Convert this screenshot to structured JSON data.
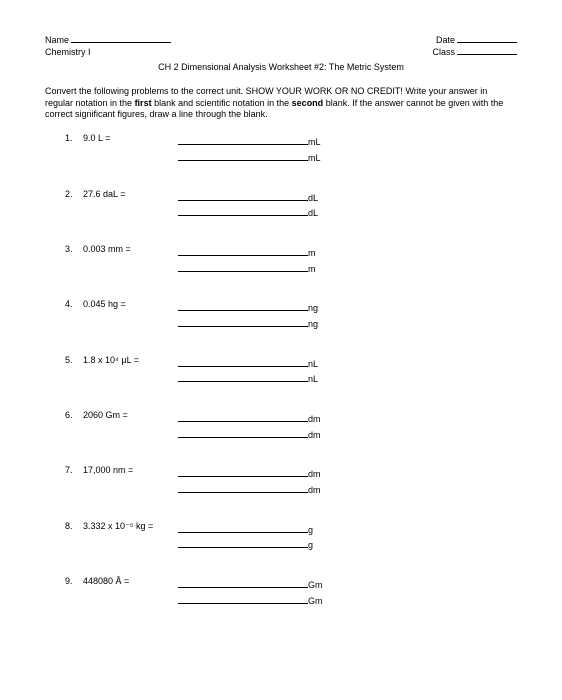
{
  "header": {
    "name_label": "Name",
    "date_label": "Date",
    "course_label": "Chemistry I",
    "class_label": "Class"
  },
  "title": "CH 2 Dimensional Analysis Worksheet #2:  The Metric System",
  "instructions_1": "Convert the following problems to the correct unit.  SHOW YOUR WORK OR NO CREDIT!",
  "instructions_2": "Write your answer in regular notation in the ",
  "instructions_3": " blank and scientific notation in the ",
  "instructions_4": " blank.  If the answer cannot be given with the correct significant figures, draw a line through the blank.",
  "bold_first": "first",
  "bold_second": "second",
  "problems": [
    {
      "num": "1.",
      "text": "9.0 L =",
      "unit": "mL"
    },
    {
      "num": "2.",
      "text": "27.6 daL =",
      "unit": "dL"
    },
    {
      "num": "3.",
      "text": "0.003 mm =",
      "unit": "m"
    },
    {
      "num": "4.",
      "text": "0.045 hg =",
      "unit": "ng"
    },
    {
      "num": "5.",
      "text": "1.8 x 10⁴ µL =",
      "unit": "nL"
    },
    {
      "num": "6.",
      "text": "2060 Gm =",
      "unit": "dm"
    },
    {
      "num": "7.",
      "text": "17,000 nm =",
      "unit": "dm"
    },
    {
      "num": "8.",
      "text": "3.332 x 10⁻⁵ kg =",
      "unit": "g"
    },
    {
      "num": "9.",
      "text": "448080 Å =",
      "unit": "Gm"
    }
  ]
}
